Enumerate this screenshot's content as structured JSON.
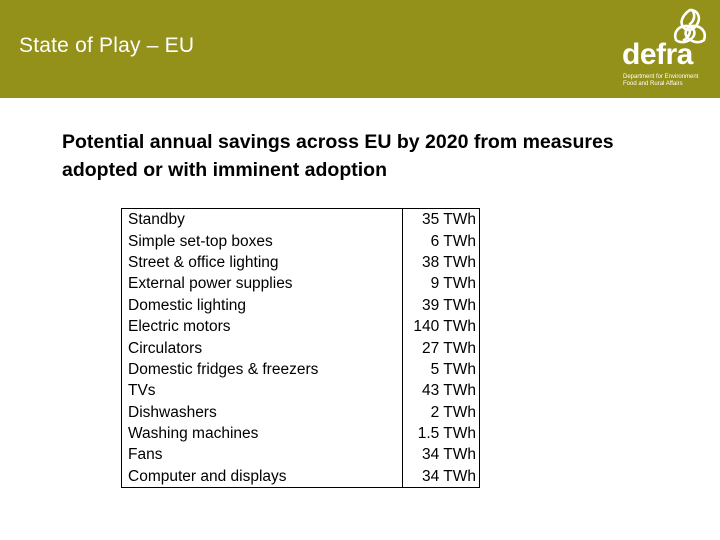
{
  "header": {
    "title": "State of Play – EU",
    "background_color": "#939119"
  },
  "logo": {
    "word": "defra",
    "subtitle": "Department for Environment Food and Rural Affairs"
  },
  "subtitle": "Potential annual savings across EU by 2020 from measures adopted or with imminent adoption",
  "table": {
    "rows": [
      {
        "measure": "Standby",
        "value": "35 TWh"
      },
      {
        "measure": "Simple set-top boxes",
        "value": "6 TWh"
      },
      {
        "measure": "Street & office lighting",
        "value": "38 TWh"
      },
      {
        "measure": "External power supplies",
        "value": "9 TWh"
      },
      {
        "measure": "Domestic lighting",
        "value": "39 TWh"
      },
      {
        "measure": "Electric motors",
        "value": "140 TWh"
      },
      {
        "measure": "Circulators",
        "value": "27 TWh"
      },
      {
        "measure": "Domestic fridges & freezers",
        "value": "5 TWh"
      },
      {
        "measure": "TVs",
        "value": "43 TWh"
      },
      {
        "measure": "Dishwashers",
        "value": "2 TWh"
      },
      {
        "measure": "Washing machines",
        "value": "1.5 TWh"
      },
      {
        "measure": "Fans",
        "value": "34 TWh"
      },
      {
        "measure": "Computer and displays",
        "value": "34 TWh"
      }
    ]
  }
}
